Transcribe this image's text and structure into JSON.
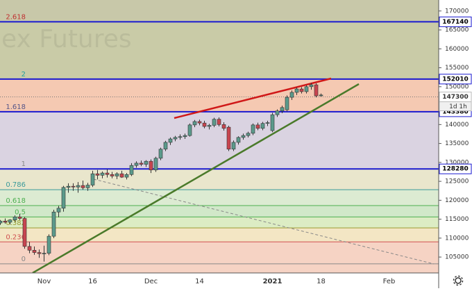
{
  "chart_data": {
    "type": "candlestick",
    "watermark": "ex Futures",
    "countdown": "1d 1h",
    "up_color": "#5b9a8b",
    "down_color": "#c8454f",
    "ylim": [
      100800,
      172900
    ],
    "yticks": [
      105000,
      110000,
      115000,
      120000,
      125000,
      130000,
      135000,
      140000,
      145000,
      150000,
      155000,
      160000,
      165000,
      170000
    ],
    "categories": [
      null,
      null,
      null,
      null,
      null,
      null,
      null,
      null,
      null,
      "Nov",
      null,
      null,
      null,
      null,
      null,
      null,
      null,
      null,
      null,
      "16",
      null,
      null,
      null,
      null,
      null,
      null,
      null,
      null,
      null,
      null,
      null,
      "Dec",
      null,
      null,
      null,
      null,
      null,
      null,
      null,
      null,
      null,
      "14",
      null,
      null,
      null,
      null,
      null,
      null,
      null,
      null,
      null,
      null,
      null,
      null,
      null,
      null,
      "2021",
      null,
      null,
      null,
      null,
      null,
      null,
      null,
      null,
      null,
      "18",
      null,
      null,
      null,
      null,
      null,
      null,
      null,
      null,
      null,
      null,
      null,
      null,
      null,
      "Feb",
      null,
      null,
      null,
      null,
      null,
      null,
      null,
      null,
      null
    ],
    "open": [
      114000,
      114500,
      114200,
      114800,
      115600,
      115200,
      107800,
      106800,
      106200,
      105900,
      106000,
      110500,
      116900,
      117900,
      123400,
      123700,
      123500,
      123900,
      123300,
      124000,
      127000,
      126600,
      127200,
      126800,
      126400,
      127000,
      126100,
      126800,
      129200,
      129800,
      129500,
      130300,
      128000,
      131100,
      133500,
      135300,
      136200,
      136600,
      136800,
      137100,
      139900,
      140800,
      140400,
      139500,
      139800,
      141400,
      140000,
      139300,
      133500,
      135300,
      136600,
      137100,
      137700,
      139900,
      139000,
      140300,
      138400,
      142600,
      143600,
      143900,
      147200,
      148500,
      149400,
      148700,
      150000,
      150500,
      147600,
      null,
      null,
      null,
      null,
      null,
      null,
      null,
      null,
      null,
      null,
      null,
      null,
      null,
      null,
      null,
      null,
      null,
      null,
      null,
      null,
      null,
      null,
      null
    ],
    "high": [
      114800,
      115200,
      115000,
      116000,
      116400,
      115600,
      109000,
      107800,
      107000,
      108000,
      111000,
      117500,
      118500,
      123800,
      124500,
      124500,
      124800,
      125200,
      124600,
      127800,
      128000,
      127600,
      128200,
      127500,
      127400,
      127800,
      127200,
      129800,
      130300,
      130500,
      130600,
      130800,
      131500,
      133900,
      135700,
      136600,
      137000,
      137400,
      137600,
      140300,
      141200,
      141300,
      141000,
      140200,
      141800,
      141900,
      140600,
      139700,
      135800,
      136900,
      137600,
      138100,
      140300,
      140500,
      140700,
      141000,
      143100,
      144000,
      145000,
      147700,
      149000,
      149800,
      149900,
      150400,
      151000,
      150900,
      148200,
      null,
      null,
      null,
      null,
      null,
      null,
      null,
      null,
      null,
      null,
      null,
      null,
      null,
      null,
      null,
      null,
      null,
      null,
      null,
      null,
      null,
      null,
      null
    ],
    "low": [
      113500,
      113800,
      113600,
      114300,
      114800,
      107200,
      106000,
      105600,
      104800,
      103800,
      105500,
      110000,
      115500,
      117000,
      122000,
      122500,
      122000,
      122800,
      122500,
      123500,
      125500,
      125800,
      126000,
      125800,
      125600,
      125900,
      125500,
      126400,
      128600,
      129000,
      128800,
      127200,
      127500,
      130600,
      133000,
      134600,
      135600,
      136000,
      136200,
      136800,
      139300,
      139800,
      139000,
      138700,
      139300,
      139500,
      138400,
      133000,
      133000,
      134700,
      136000,
      136600,
      137200,
      138500,
      138500,
      139600,
      138000,
      142000,
      143000,
      143500,
      146500,
      147800,
      148200,
      148200,
      149200,
      147200,
      147400,
      null,
      null,
      null,
      null,
      null,
      null,
      null,
      null,
      null,
      null,
      null,
      null,
      null,
      null,
      null,
      null,
      null,
      null,
      null,
      null,
      null,
      null,
      null
    ],
    "close": [
      114500,
      114200,
      114800,
      115600,
      115200,
      107800,
      106800,
      106200,
      105900,
      106000,
      110500,
      116900,
      117900,
      123400,
      123700,
      123500,
      123900,
      123300,
      124000,
      127000,
      126600,
      127200,
      126800,
      126400,
      127000,
      126100,
      126800,
      129200,
      129800,
      129500,
      130300,
      128000,
      131100,
      133500,
      135300,
      136200,
      136600,
      136800,
      137100,
      139900,
      140800,
      140400,
      139500,
      139800,
      141400,
      140000,
      139000,
      133500,
      135300,
      136600,
      137100,
      137700,
      139900,
      139000,
      140300,
      140500,
      142600,
      143600,
      144500,
      147200,
      148500,
      149400,
      148700,
      150000,
      150500,
      147600,
      147800,
      null,
      null,
      null,
      null,
      null,
      null,
      null,
      null,
      null,
      null,
      null,
      null,
      null,
      null,
      null,
      null,
      null,
      null,
      null,
      null,
      null,
      null,
      null
    ],
    "fib_levels": [
      {
        "label": "0",
        "value": 103200,
        "color": "#888888",
        "fill": "#f6d3c4"
      },
      {
        "label": "0.236",
        "value": 109000,
        "color": "#d05050",
        "fill": "#f3e6c4"
      },
      {
        "label": "0.382",
        "value": 112700,
        "color": "#9a9a30",
        "fill": "#dcecc4"
      },
      {
        "label": "0.5",
        "value": 115600,
        "color": "#4caf50",
        "fill": "#d1e8c9"
      },
      {
        "label": "0.618",
        "value": 118600,
        "color": "#4caf50",
        "fill": "#dcebd2"
      },
      {
        "label": "0.786",
        "value": 122800,
        "color": "#3a9a9a",
        "fill": "#e9e6cc"
      },
      {
        "label": "1",
        "value": 128280,
        "color": "#888888",
        "fill": "#dad3e1"
      },
      {
        "label": "1.618",
        "value": 143380,
        "color": "#555588",
        "fill": "#f5c9b2"
      },
      {
        "label": "2",
        "value": 152010,
        "color": "#20a0a0",
        "fill": "#c9cba7"
      },
      {
        "label": "2.618",
        "value": 167140,
        "color": "#c03030",
        "fill": "#c8c8a9"
      }
    ],
    "price_lines": [
      {
        "value": 167140,
        "color": "#1a1ad0"
      },
      {
        "value": 152010,
        "color": "#1a1ad0"
      },
      {
        "value": 143380,
        "color": "#1a1ad0"
      },
      {
        "value": 128280,
        "color": "#1a1ad0"
      }
    ],
    "last_price": {
      "value": 147300,
      "color": "#777777"
    }
  }
}
